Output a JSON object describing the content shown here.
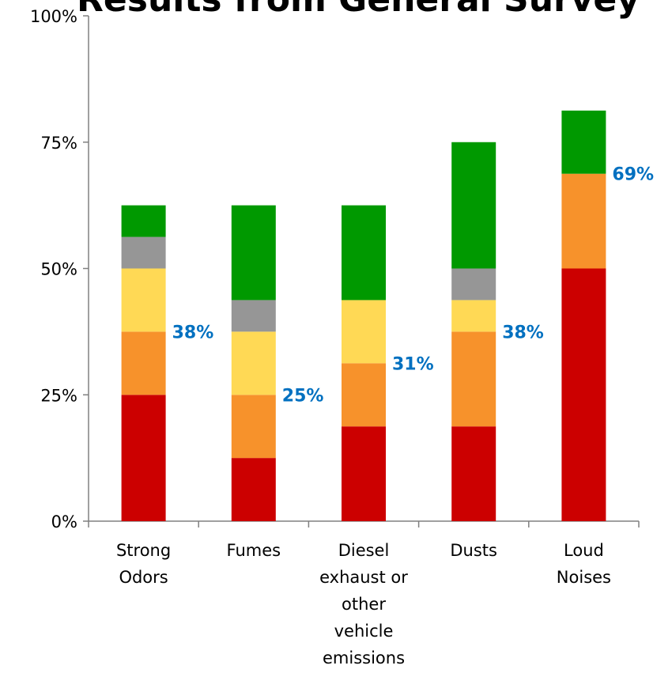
{
  "chart_data": {
    "type": "bar",
    "stacked": true,
    "title": "Results from General Survey",
    "xlabel": "",
    "ylabel": "",
    "ylim": [
      0,
      1
    ],
    "y_ticks": [
      {
        "value": 0,
        "label": "0%"
      },
      {
        "value": 0.25,
        "label": "25%"
      },
      {
        "value": 0.5,
        "label": "50%"
      },
      {
        "value": 0.75,
        "label": "75%"
      },
      {
        "value": 1,
        "label": "100%"
      }
    ],
    "grid": false,
    "legend": "none",
    "categories": [
      [
        "Strong",
        "Odors"
      ],
      [
        "Fumes"
      ],
      [
        "Diesel",
        "exhaust or",
        "other",
        "vehicle",
        "emissions"
      ],
      [
        "Dusts"
      ],
      [
        "Loud",
        "Noises"
      ]
    ],
    "series": [
      {
        "color": "#cc0000",
        "values": [
          0.25,
          0.125,
          0.1875,
          0.1875,
          0.5
        ]
      },
      {
        "color": "#f7922b",
        "values": [
          0.125,
          0.125,
          0.125,
          0.1875,
          0.1875
        ]
      },
      {
        "color": "#ffd955",
        "values": [
          0.125,
          0.125,
          0.125,
          0.0625,
          0
        ]
      },
      {
        "color": "#969696",
        "values": [
          0.0625,
          0.0625,
          0,
          0.0625,
          0
        ]
      },
      {
        "color": "#009900",
        "values": [
          0.0625,
          0.1875,
          0.1875,
          0.25,
          0.125
        ]
      }
    ],
    "annotations": [
      {
        "category_index": 0,
        "value": 0.375,
        "label": "38%"
      },
      {
        "category_index": 1,
        "value": 0.25,
        "label": "25%"
      },
      {
        "category_index": 2,
        "value": 0.3125,
        "label": "31%"
      },
      {
        "category_index": 3,
        "value": 0.375,
        "label": "38%"
      },
      {
        "category_index": 4,
        "value": 0.6875,
        "label": "69%"
      }
    ],
    "colors": {
      "axis": "#808080",
      "annotation": "#0070c0"
    }
  }
}
